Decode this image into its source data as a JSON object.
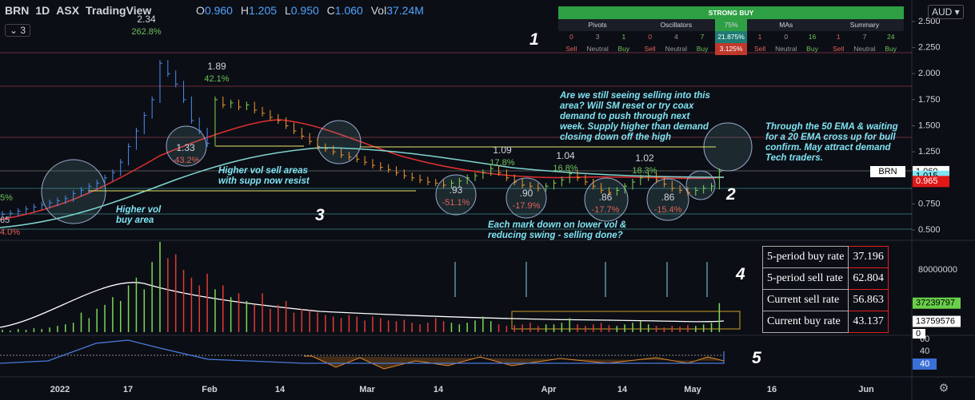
{
  "header": {
    "symbol": "BRN",
    "interval": "1D",
    "exchange": "ASX",
    "source": "TradingView",
    "collapse_count": "3",
    "o_label": "O",
    "open": "0.960",
    "h_label": "H",
    "high": "1.205",
    "l_label": "L",
    "low": "0.950",
    "c_label": "C",
    "close": "1.060",
    "vol_label": "Vol",
    "volume": "37.24M",
    "currency": "AUD"
  },
  "technicals": {
    "rating": "STRONG BUY",
    "gauge": "75%",
    "osc_buy": "21.875%",
    "osc_sell": "3.125%",
    "groups": [
      {
        "name": "Pivots",
        "counts": [
          "0",
          "3",
          "1"
        ]
      },
      {
        "name": "Oscillators",
        "counts": [
          "0",
          "4",
          "7"
        ]
      },
      {
        "name": "MAs",
        "counts": [
          "1",
          "0",
          "16"
        ]
      },
      {
        "name": "Summary",
        "counts": [
          "1",
          "7",
          "24"
        ]
      }
    ],
    "sell": "Sell",
    "neutral": "Neutral",
    "buy": "Buy"
  },
  "price_axis": {
    "ticks": [
      {
        "value": 2.5,
        "label": "2.500"
      },
      {
        "value": 2.25,
        "label": "2.250"
      },
      {
        "value": 2,
        "label": "2.000"
      },
      {
        "value": 1.75,
        "label": "1.750"
      },
      {
        "value": 1.5,
        "label": "1.500"
      },
      {
        "value": 1.25,
        "label": "1.250"
      },
      {
        "value": 0.75,
        "label": "0.750"
      },
      {
        "value": 0.5,
        "label": "0.500"
      }
    ],
    "ylim": [
      0.5,
      2.5
    ],
    "symbol_tag": "BRN",
    "last": {
      "value": 1.06,
      "label": "1.060"
    },
    "ema50": {
      "value": 1.015,
      "label": "1.015"
    },
    "ema20": {
      "value": 0.965,
      "label": "0.965"
    }
  },
  "price": {
    "closes": [
      0.65,
      0.66,
      0.68,
      0.7,
      0.72,
      0.74,
      0.76,
      0.78,
      0.8,
      0.85,
      0.88,
      0.92,
      0.95,
      1.0,
      1.05,
      1.15,
      1.3,
      1.45,
      1.6,
      1.75,
      2.1,
      2.0,
      1.9,
      1.75,
      1.55,
      1.45,
      1.33,
      1.75,
      1.7,
      1.72,
      1.68,
      1.7,
      1.65,
      1.62,
      1.58,
      1.55,
      1.5,
      1.45,
      1.4,
      1.35,
      1.3,
      1.28,
      1.25,
      1.22,
      1.2,
      1.18,
      1.15,
      1.12,
      1.1,
      1.08,
      1.05,
      1.02,
      1.0,
      0.98,
      0.96,
      0.95,
      0.93,
      0.95,
      0.97,
      1.0,
      1.02,
      1.05,
      1.09,
      1.05,
      1.0,
      0.96,
      0.93,
      0.92,
      0.9,
      0.92,
      0.95,
      0.98,
      1.04,
      1.0,
      0.96,
      0.92,
      0.88,
      0.86,
      0.88,
      0.92,
      0.96,
      1.0,
      1.02,
      0.98,
      0.94,
      0.9,
      0.88,
      0.86,
      0.88,
      0.9,
      0.92,
      1.06
    ],
    "volumes": [
      3000000,
      2000000,
      4000000,
      3000000,
      5000000,
      4000000,
      6000000,
      8000000,
      10000000,
      12000000,
      25000000,
      18000000,
      30000000,
      35000000,
      45000000,
      40000000,
      60000000,
      70000000,
      55000000,
      90000000,
      140000000,
      95000000,
      100000000,
      80000000,
      70000000,
      60000000,
      75000000,
      55000000,
      60000000,
      45000000,
      50000000,
      40000000,
      35000000,
      50000000,
      30000000,
      35000000,
      40000000,
      25000000,
      30000000,
      28000000,
      25000000,
      22000000,
      20000000,
      18000000,
      22000000,
      20000000,
      15000000,
      20000000,
      18000000,
      15000000,
      14000000,
      16000000,
      12000000,
      10000000,
      12000000,
      18000000,
      14000000,
      12000000,
      10000000,
      12000000,
      15000000,
      20000000,
      14000000,
      10000000,
      8000000,
      9000000,
      10000000,
      12000000,
      8000000,
      10000000,
      10000000,
      12000000,
      18000000,
      10000000,
      8000000,
      10000000,
      12000000,
      9000000,
      8000000,
      10000000,
      12000000,
      14000000,
      10000000,
      8000000,
      6000000,
      8000000,
      7000000,
      9000000,
      8000000,
      10000000,
      12000000,
      37239797
    ]
  },
  "volume_axis": {
    "ticks": [
      80000000
    ],
    "ylim": [
      0,
      80000000
    ],
    "last": 37239797,
    "ma": 13759576
  },
  "osc_axis": {
    "ticks": [
      "60",
      "40"
    ],
    "tag_top": "0",
    "tag_bottom": "40"
  },
  "time_axis": [
    "2022",
    "17",
    "Feb",
    "14",
    "Mar",
    "14",
    "Apr",
    "14",
    "May",
    "16",
    "Jun"
  ],
  "marks": [
    {
      "price": "2.34",
      "change": "262.8%"
    },
    {
      "price": "1.89",
      "change": "42.1%"
    },
    {
      "price": "1.33",
      "change": "-43.2%"
    },
    {
      "price": "1.09",
      "change": "17.8%"
    },
    {
      "price": "1.04",
      "change": "16.8%"
    },
    {
      "price": "1.02",
      "change": "18.3%"
    },
    {
      "price": ".93",
      "change": "-51.1%"
    },
    {
      "price": ".90",
      "change": "-17.9%"
    },
    {
      "price": ".86",
      "change": "-17.7%"
    },
    {
      "price": ".86",
      "change": "-15.4%"
    }
  ],
  "edge_labels": [
    "5%",
    "65",
    "4.0%"
  ],
  "notes": {
    "question": "Are we still seeing selling into this area? Will SM reset or try coax demand to push through next week. Supply higher than demand closing down off the high",
    "ema": "Through the 50 EMA & waiting for a 20 EMA cross up for bull confirm. May attract demand Tech traders.",
    "sell_areas": "Higher vol sell areas with supp now resist",
    "buy_area": "Higher vol buy area",
    "mark_down": "Each mark down on lower vol & reducing swing - selling done?"
  },
  "numbers": [
    "1",
    "2",
    "3",
    "4",
    "5"
  ],
  "stats": [
    [
      "5-period buy rate",
      "37.196"
    ],
    [
      "5-period sell rate",
      "62.804"
    ],
    [
      "Current sell rate",
      "56.863"
    ],
    [
      "Current buy rate",
      "43.137"
    ]
  ]
}
